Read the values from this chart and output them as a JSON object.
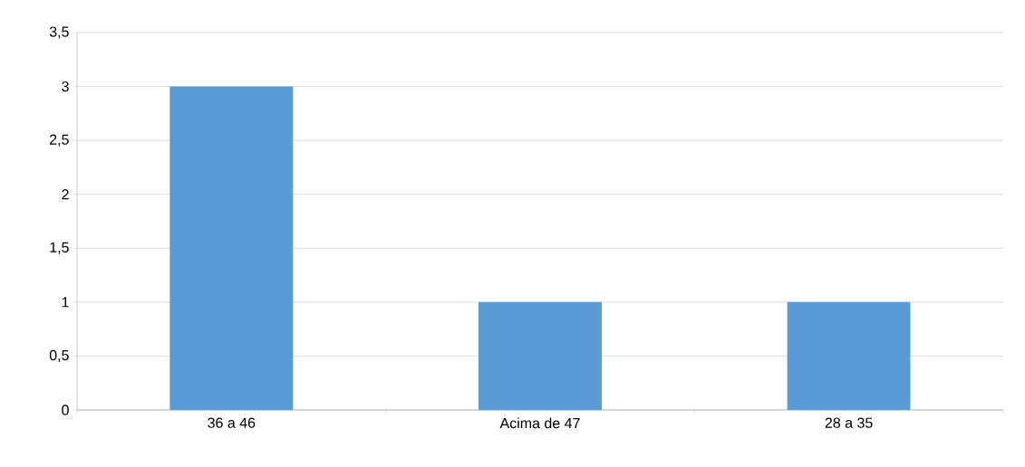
{
  "chart_data": {
    "type": "bar",
    "categories": [
      "36 a 46",
      "Acima de 47",
      "28 a 35"
    ],
    "values": [
      3,
      1,
      1
    ],
    "color": "#5b9bd5",
    "ylim": [
      0,
      3.5
    ],
    "yticks": [
      0,
      {
        "value": 0.5,
        "label": "0,5"
      },
      1,
      {
        "value": 1.5,
        "label": "1,5"
      },
      2,
      {
        "value": 2.5,
        "label": "2,5"
      },
      3,
      {
        "value": 3.5,
        "label": "3,5"
      }
    ],
    "grid": "y"
  }
}
